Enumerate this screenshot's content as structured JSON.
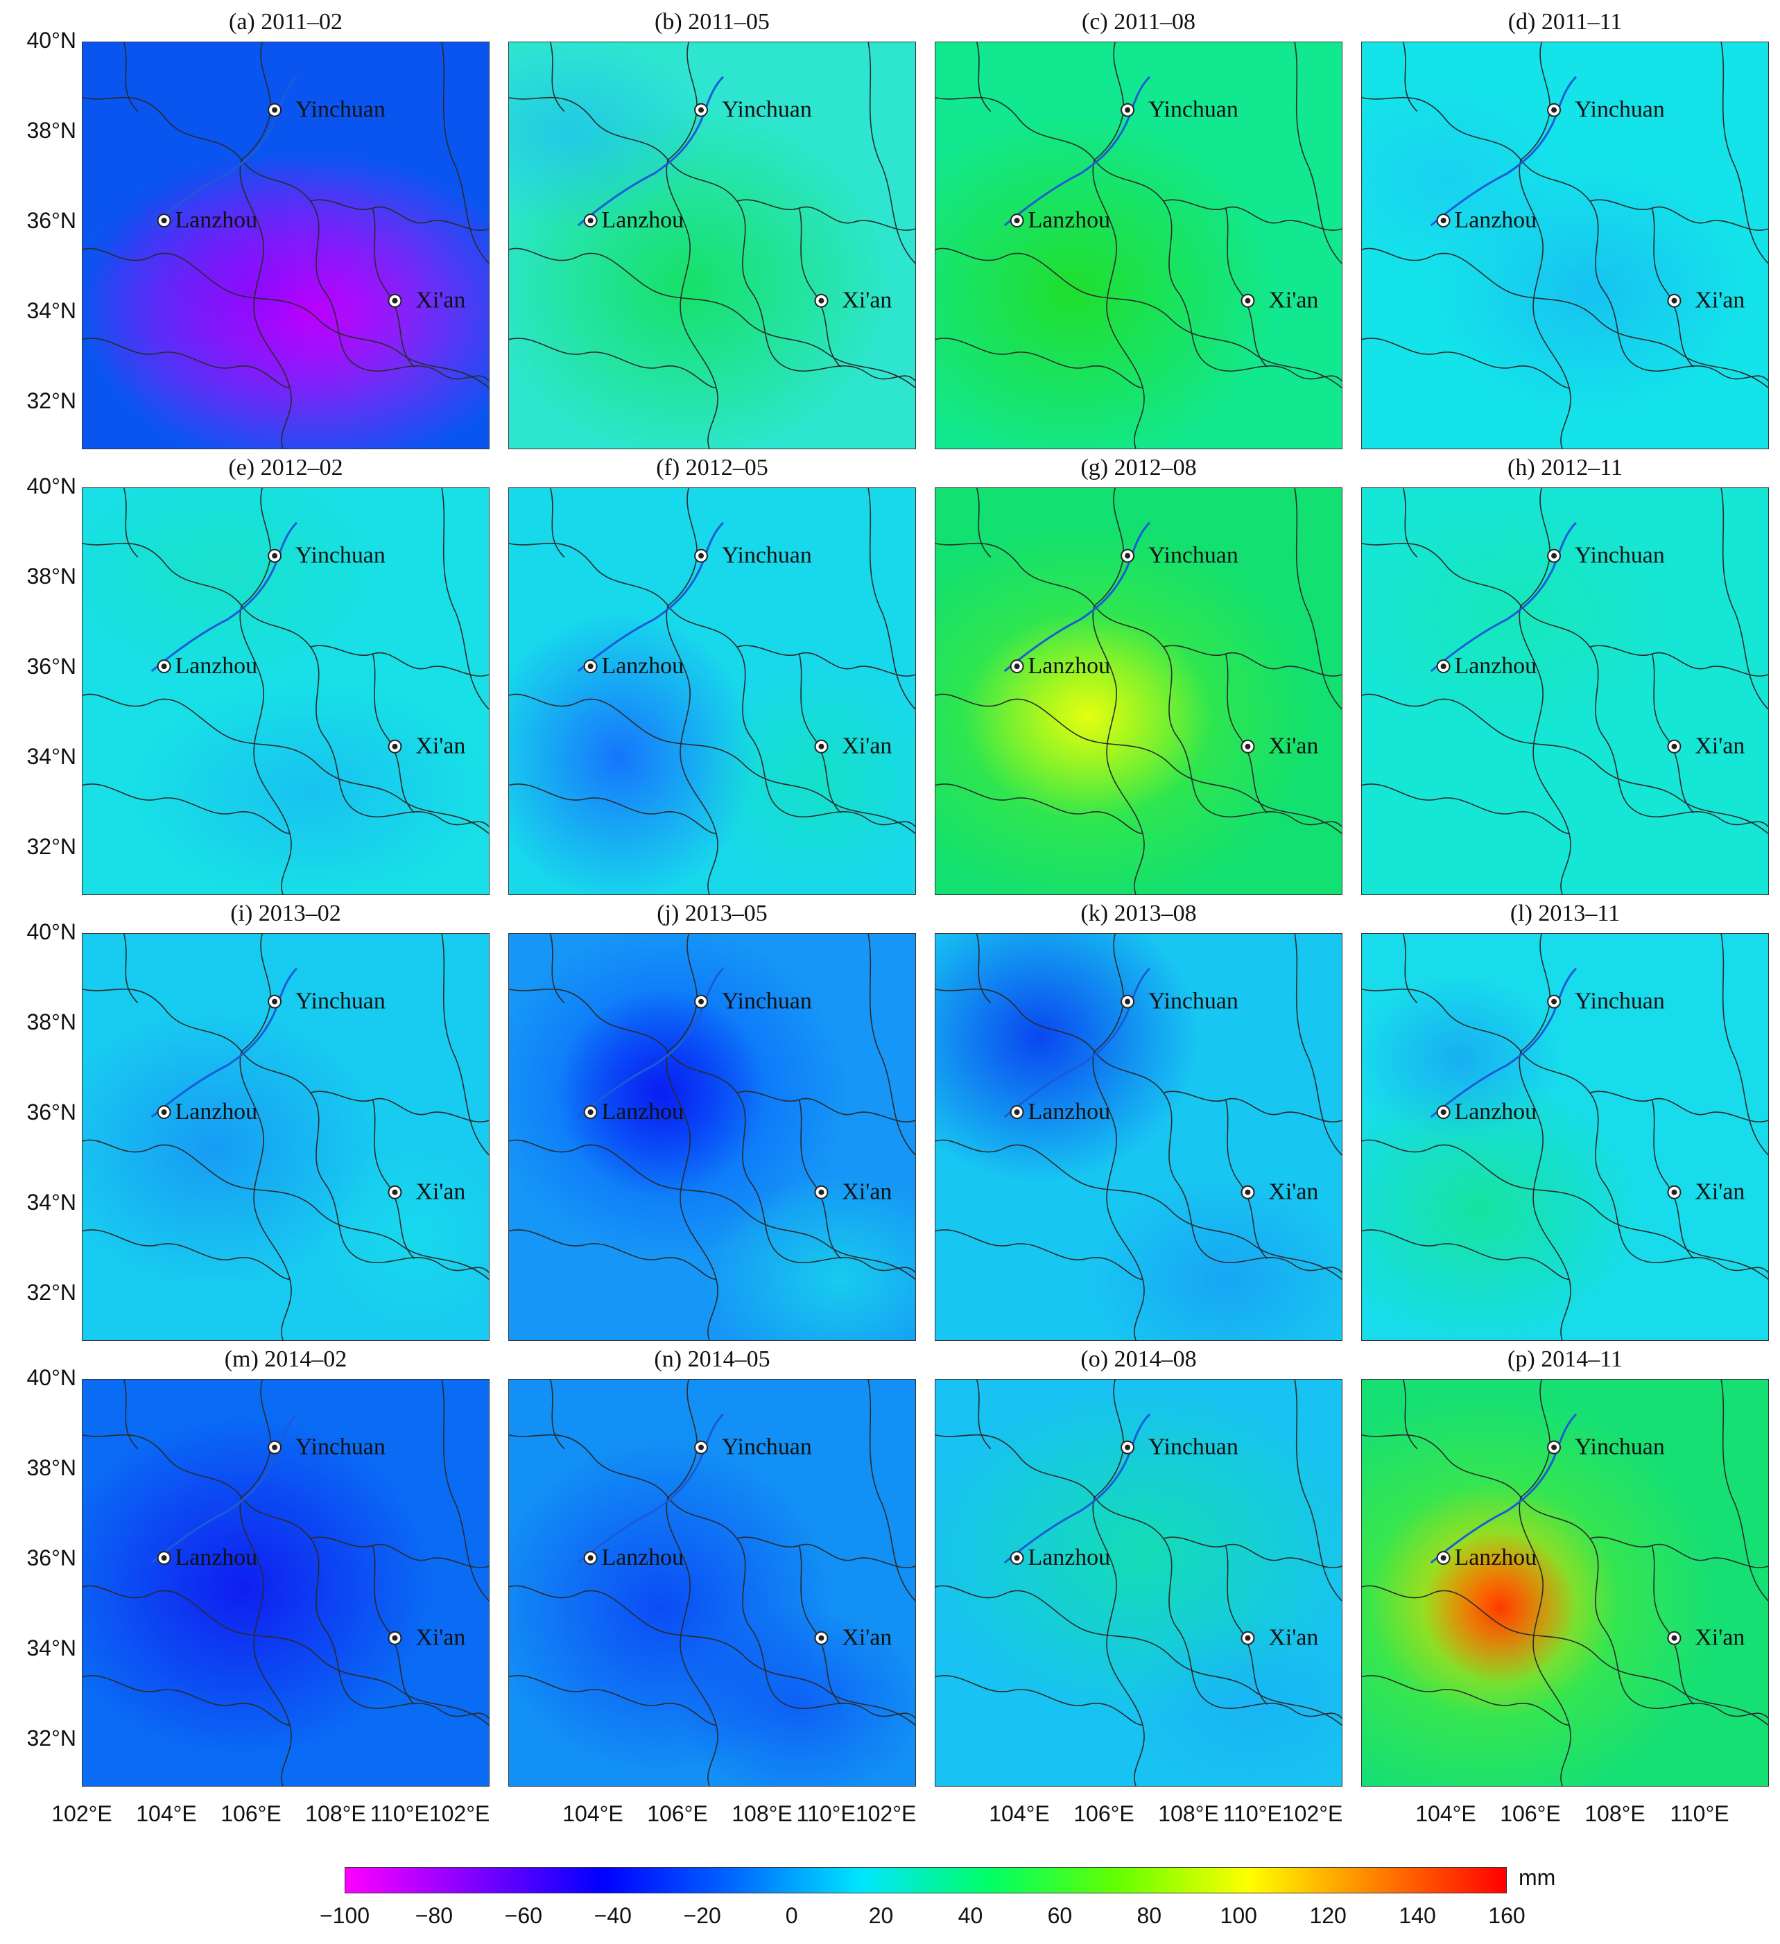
{
  "figure": {
    "lat_ticks": [
      "40°N",
      "38°N",
      "36°N",
      "34°N",
      "32°N"
    ],
    "lon_ticks": [
      "102°E",
      "104°E",
      "106°E",
      "108°E",
      "110°E102°E",
      "104°E",
      "106°E",
      "108°E",
      "110°E102°E",
      "104°E",
      "106°E",
      "108°E",
      "110°E102°E",
      "104°E",
      "106°E",
      "108°E",
      "110°E"
    ],
    "cities": [
      "Yinchuan",
      "Lanzhou",
      "Xi'an"
    ],
    "panels": [
      {
        "title": "(a) 2011–02"
      },
      {
        "title": "(b) 2011–05"
      },
      {
        "title": "(c) 2011–08"
      },
      {
        "title": "(d) 2011–11"
      },
      {
        "title": "(e) 2012–02"
      },
      {
        "title": "(f) 2012–05"
      },
      {
        "title": "(g) 2012–08"
      },
      {
        "title": "(h) 2012–11"
      },
      {
        "title": "(i) 2013–02"
      },
      {
        "title": "(j) 2013–05"
      },
      {
        "title": "(k) 2013–08"
      },
      {
        "title": "(l) 2013–11"
      },
      {
        "title": "(m) 2014–02"
      },
      {
        "title": "(n) 2014–05"
      },
      {
        "title": "(o) 2014–08"
      },
      {
        "title": "(p) 2014–11"
      }
    ]
  },
  "colorbar": {
    "unit": "mm",
    "ticks": [
      "−100",
      "−80",
      "−60",
      "−40",
      "−20",
      "0",
      "20",
      "40",
      "60",
      "80",
      "100",
      "120",
      "140",
      "160"
    ],
    "colors": [
      "#ff00ff",
      "#8000ff",
      "#0000ff",
      "#0066ff",
      "#00e5ff",
      "#00ff66",
      "#66ff00",
      "#ffff00",
      "#ff8000",
      "#ff0000"
    ]
  }
}
